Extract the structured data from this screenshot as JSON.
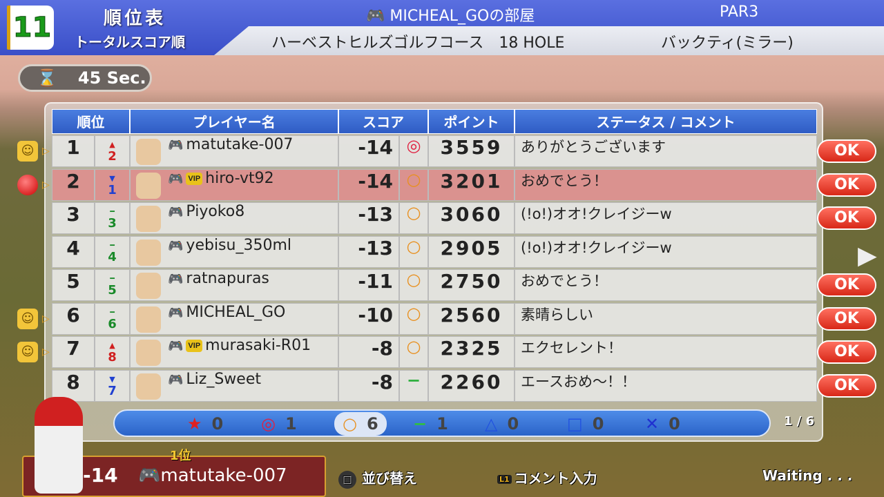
{
  "header": {
    "hole_number": "11",
    "title": "順位表",
    "subtitle": "トータルスコア順",
    "room": "MICHEAL_GOの部屋",
    "par": "PAR3",
    "course": "ハーベストヒルズゴルフコース　18 HOLE",
    "tee": "バックティ(ミラー)"
  },
  "timer": {
    "icon": "hourglass-icon",
    "value": "45",
    "unit": "Sec."
  },
  "table": {
    "columns": [
      "順位",
      "プレイヤー名",
      "スコア",
      "ポイント",
      "ステータス / コメント"
    ],
    "rows": [
      {
        "rank": "1",
        "prev": "2",
        "trend": "up",
        "player": "matutake-007",
        "vip": false,
        "score": "-14",
        "result": "◎",
        "points": "3559",
        "comment": "ありがとうございます",
        "marker": "smiley",
        "ok": "OK",
        "highlight": false
      },
      {
        "rank": "2",
        "prev": "1",
        "trend": "down",
        "player": "hiro-vt92",
        "vip": true,
        "score": "-14",
        "result": "○",
        "points": "3201",
        "comment": "おめでとう！",
        "marker": "ball",
        "ok": "OK",
        "highlight": true
      },
      {
        "rank": "3",
        "prev": "3",
        "trend": "same",
        "player": "Piyoko8",
        "vip": false,
        "score": "-13",
        "result": "○",
        "points": "3060",
        "comment": "(!o!)オオ!クレイジーw",
        "marker": "",
        "ok": "OK",
        "highlight": false
      },
      {
        "rank": "4",
        "prev": "4",
        "trend": "same",
        "player": "yebisu_350ml",
        "vip": false,
        "score": "-13",
        "result": "○",
        "points": "2905",
        "comment": "(!o!)オオ!クレイジーw",
        "marker": "",
        "ok": "",
        "highlight": false
      },
      {
        "rank": "5",
        "prev": "5",
        "trend": "same",
        "player": "ratnapuras",
        "vip": false,
        "score": "-11",
        "result": "○",
        "points": "2750",
        "comment": "おめでとう！",
        "marker": "",
        "ok": "OK",
        "highlight": false
      },
      {
        "rank": "6",
        "prev": "6",
        "trend": "same",
        "player": "MICHEAL_GO",
        "vip": false,
        "score": "-10",
        "result": "○",
        "points": "2560",
        "comment": "素晴らしい",
        "marker": "smiley",
        "ok": "OK",
        "highlight": false
      },
      {
        "rank": "7",
        "prev": "8",
        "trend": "up",
        "player": "murasaki-R01",
        "vip": true,
        "score": "-8",
        "result": "○",
        "points": "2325",
        "comment": "エクセレント！",
        "marker": "smiley",
        "ok": "OK",
        "highlight": false
      },
      {
        "rank": "8",
        "prev": "7",
        "trend": "down",
        "player": "Liz_Sweet",
        "vip": false,
        "score": "-8",
        "result": "−",
        "points": "2260",
        "comment": "エースおめ～！！",
        "marker": "",
        "ok": "OK",
        "highlight": false
      }
    ]
  },
  "summary": [
    {
      "icon": "★",
      "name": "star-icon",
      "count": "0",
      "color": "#e02020"
    },
    {
      "icon": "◎",
      "name": "double-circle-icon",
      "count": "1",
      "color": "#e02040"
    },
    {
      "icon": "○",
      "name": "circle-icon",
      "count": "6",
      "color": "#e89020",
      "selected": true
    },
    {
      "icon": "−",
      "name": "dash-icon",
      "count": "1",
      "color": "#30c040"
    },
    {
      "icon": "△",
      "name": "triangle-icon",
      "count": "0",
      "color": "#2050e0"
    },
    {
      "icon": "□",
      "name": "square-icon",
      "count": "0",
      "color": "#2050e0"
    },
    {
      "icon": "✕",
      "name": "cross-icon",
      "count": "0",
      "color": "#2030d0"
    }
  ],
  "page": "1 / 6",
  "me": {
    "rank": "1位",
    "score": "-14",
    "name": "matutake-007"
  },
  "help": {
    "sort": "並び替え",
    "comment": "コメント入力",
    "l1": "L1",
    "status": "Waiting . . ."
  }
}
